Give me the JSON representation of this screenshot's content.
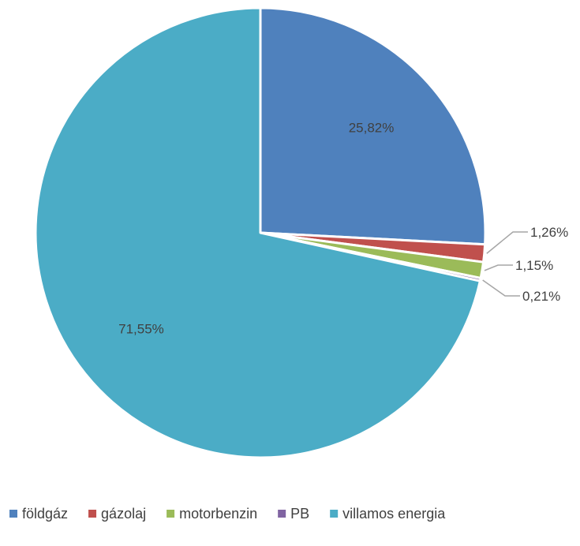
{
  "chart_data": {
    "type": "pie",
    "title": "",
    "categories": [
      "földgáz",
      "gázolaj",
      "motorbenzin",
      "PB",
      "villamos energia"
    ],
    "values": [
      25.82,
      1.26,
      1.15,
      0.21,
      71.55
    ],
    "data_labels": [
      "25,82%",
      "1,26%",
      "1,15%",
      "0,21%",
      "71,55%"
    ],
    "colors": [
      "#4F81BD",
      "#C0504D",
      "#9BBB59",
      "#8064A2",
      "#4BACC6"
    ],
    "legend_position": "bottom",
    "start_angle": "12 o'clock",
    "direction": "clockwise"
  }
}
